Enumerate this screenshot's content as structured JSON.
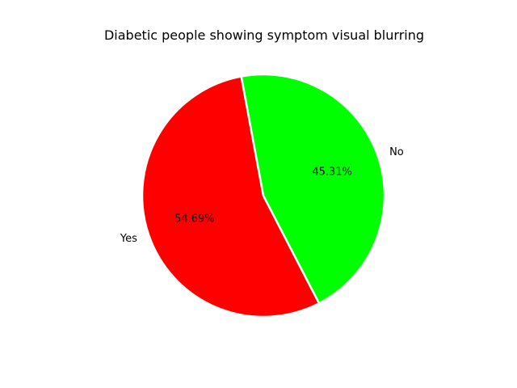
{
  "chart_data": {
    "type": "pie",
    "title": "Diabetic people showing symptom visual blurring",
    "categories": [
      "Yes",
      "No"
    ],
    "values": [
      54.69,
      45.31
    ],
    "percent_labels": [
      "54.69%",
      "45.31%"
    ],
    "colors": [
      "#ff0000",
      "#00ff00"
    ],
    "edge_color": "#ffffff",
    "legend": "none"
  }
}
